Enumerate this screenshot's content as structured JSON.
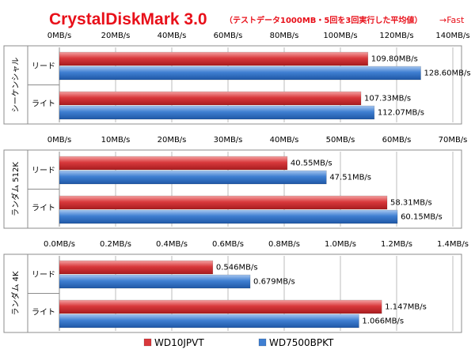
{
  "title": "CrystalDiskMark 3.0",
  "subtitle": "（テストデータ1000MB・5回を3回実行した平均値）",
  "fast_label": "→Fast",
  "colors": {
    "WD10JPVT": "#d9393c",
    "WD7500BPKT": "#3f7fd2",
    "title": "#e8101a"
  },
  "chart_data": [
    {
      "type": "bar",
      "orientation": "horizontal",
      "group_label": "シーケンシャル",
      "categories": [
        "リード",
        "ライト"
      ],
      "xlim": [
        0,
        140
      ],
      "xticks": [
        "0MB/s",
        "20MB/s",
        "40MB/s",
        "60MB/s",
        "80MB/s",
        "100MB/s",
        "120MB/s",
        "140MB/s"
      ],
      "series": [
        {
          "name": "WD10JPVT",
          "values": [
            109.8,
            107.33
          ],
          "labels": [
            "109.80MB/s",
            "107.33MB/s"
          ]
        },
        {
          "name": "WD7500BPKT",
          "values": [
            128.6,
            112.07
          ],
          "labels": [
            "128.60MB/s",
            "112.07MB/s"
          ]
        }
      ]
    },
    {
      "type": "bar",
      "orientation": "horizontal",
      "group_label": "ランダム 512K",
      "categories": [
        "リード",
        "ライト"
      ],
      "xlim": [
        0,
        70
      ],
      "xticks": [
        "0MB/s",
        "10MB/s",
        "20MB/s",
        "30MB/s",
        "40MB/s",
        "50MB/s",
        "60MB/s",
        "70MB/s"
      ],
      "series": [
        {
          "name": "WD10JPVT",
          "values": [
            40.55,
            58.31
          ],
          "labels": [
            "40.55MB/s",
            "58.31MB/s"
          ]
        },
        {
          "name": "WD7500BPKT",
          "values": [
            47.51,
            60.15
          ],
          "labels": [
            "47.51MB/s",
            "60.15MB/s"
          ]
        }
      ]
    },
    {
      "type": "bar",
      "orientation": "horizontal",
      "group_label": "ランダム 4K",
      "categories": [
        "リード",
        "ライト"
      ],
      "xlim": [
        0,
        1.4
      ],
      "xticks": [
        "0.0MB/s",
        "0.2MB/s",
        "0.4MB/s",
        "0.6MB/s",
        "0.8MB/s",
        "1.0MB/s",
        "1.2MB/s",
        "1.4MB/s"
      ],
      "series": [
        {
          "name": "WD10JPVT",
          "values": [
            0.546,
            1.147
          ],
          "labels": [
            "0.546MB/s",
            "1.147MB/s"
          ]
        },
        {
          "name": "WD7500BPKT",
          "values": [
            0.679,
            1.066
          ],
          "labels": [
            "0.679MB/s",
            "1.066MB/s"
          ]
        }
      ]
    }
  ],
  "legend": [
    {
      "name": "WD10JPVT",
      "color": "#d9393c"
    },
    {
      "name": "WD7500BPKT",
      "color": "#3f7fd2"
    }
  ]
}
